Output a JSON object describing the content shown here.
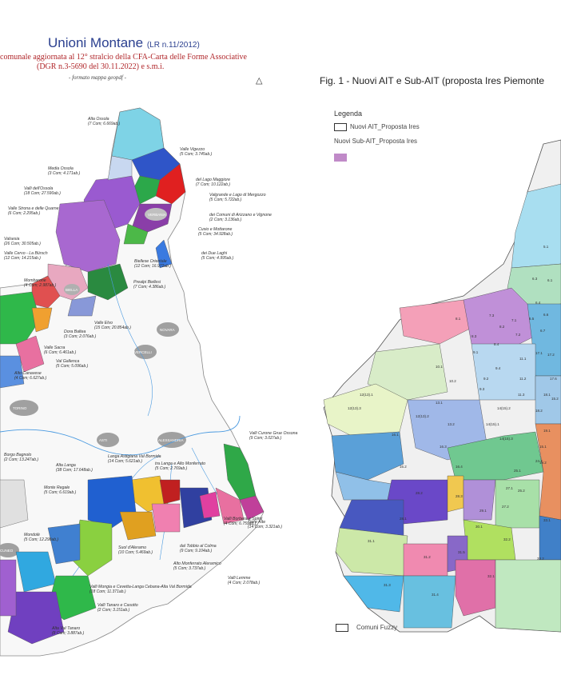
{
  "left_map": {
    "title": "Unioni Montane",
    "title_sub": "(LR n.11/2012)",
    "line1": "comunale aggiornata al 12° stralcio della CFA-Carta delle Forme Associative",
    "line2": "(DGR n.3-5690 del 30.11.2022) e s.m.i.",
    "note": "- formato mappa geopdf -",
    "compass": "△",
    "labels": [
      {
        "name": "Alta Ossola",
        "info": "(7 Com; 6.669ab.)"
      },
      {
        "name": "Valle Vigezzo",
        "info": "(5 Com; 3.745ab.)"
      },
      {
        "name": "Media Ossola",
        "info": "(3 Com; 4.171ab.)"
      },
      {
        "name": "del Lago Maggiore",
        "info": "(7 Com; 10.122ab.)"
      },
      {
        "name": "Valli dell'Ossola",
        "info": "(18 Com; 27.590ab.)"
      },
      {
        "name": "Valgrande e Lago di Mergozzo",
        "info": "(5 Com; 5.722ab.)"
      },
      {
        "name": "Valle Strona e delle Quarne",
        "info": "(6 Com; 2.295ab.)"
      },
      {
        "name": "dei Comuni di Arizzano e Vignone",
        "info": "(2 Com; 3.136ab.)"
      },
      {
        "name": "Valsesia",
        "info": "(26 Com; 30.505ab.)"
      },
      {
        "name": "Cusio e Mottarone",
        "info": "(5 Com; 34.928ab.)"
      },
      {
        "name": "Valle Cervo - La Bürsch",
        "info": "(12 Com; 14.215ab.)"
      },
      {
        "name": "dei Due Laghi",
        "info": "(5 Com; 4.995ab.)"
      },
      {
        "name": "Mombarone",
        "info": "(4 Com; 2.987ab.)"
      },
      {
        "name": "Biellese Orientale",
        "info": "(12 Com; 16.972ab.)"
      },
      {
        "name": "Prealpi Biellesi",
        "info": "(7 Com; 4.386ab.)"
      },
      {
        "name": "Valle Elvo",
        "info": "(15 Com; 20.854ab.)"
      },
      {
        "name": "Dora Baltea",
        "info": "(3 Com; 2.076ab.)"
      },
      {
        "name": "Valle Sacra",
        "info": "(6 Com; 6.461ab.)"
      },
      {
        "name": "Val Gallenca",
        "info": "(5 Com; 5.096ab.)"
      },
      {
        "name": "Alto Canavese",
        "info": "(4 Com; 6.627ab.)"
      },
      {
        "name": "Valli Curone Grue Ossona",
        "info": "(9 Com; 3.027ab.)"
      },
      {
        "name": "Langa Astigiana Val Bormida",
        "info": "(14 Com; 5.621ab.)"
      },
      {
        "name": "tra Langa e Alto Monferrato",
        "info": "(5 Com; 2.769ab.)"
      },
      {
        "name": "Alta Langa",
        "info": "(38 Com; 17.648ab.)"
      },
      {
        "name": "Monte Regale",
        "info": "(5 Com; 6.619ab.)"
      },
      {
        "name": "Valli Borbera e Spinti",
        "info": "(4 Com; 6.759ab.)"
      },
      {
        "name": "Terre Alte",
        "info": "(14 Com; 3.321ab.)"
      },
      {
        "name": "Mondolè",
        "info": "(5 Com; 12.298ab.)"
      },
      {
        "name": "dal Tobbio al Colma",
        "info": "(9 Com; 9.104ab.)"
      },
      {
        "name": "Suol d'Aleramo",
        "info": "(10 Com; 5.469ab.)"
      },
      {
        "name": "Alto Monferrato Aleramico",
        "info": "(5 Com; 3.737ab.)"
      },
      {
        "name": "Valli Lemme",
        "info": "(4 Com; 2.078ab.)"
      },
      {
        "name": "Valli Mongia e Cevetta-Langa Cebana-Alta Val Bormida",
        "info": "(18 Com; 11.371ab.)"
      },
      {
        "name": "Valli Tanaro e Casotto",
        "info": "(2 Com; 3.151ab.)"
      },
      {
        "name": "Alta Val Tanaro",
        "info": "(8 Com; 3.887ab.)"
      },
      {
        "name": "Borgo Bagnolo",
        "info": "(2 Com; 13.247ab.)"
      }
    ],
    "towns": [
      "VERBANIA",
      "NOVARA",
      "VERCELLI",
      "BIELLA",
      "TORINO",
      "ASTI",
      "ALESSANDRIA",
      "CUNEO"
    ]
  },
  "right_map": {
    "fig_title": "Fig. 1 - Nuovi AIT e Sub-AIT (proposta Ires Piemonte",
    "legend_title": "Legenda",
    "legend_items": [
      {
        "label": "Nuovi AIT_Proposta Ires",
        "color": "#ffffff"
      },
      {
        "label": "Nuovi Sub-AIT_Proposta Ires",
        "color": "#c08ac8"
      }
    ],
    "fuzzy_label": "Comuni Fuzzy",
    "region_codes": [
      "5.1",
      "6.1",
      "8.1",
      "7.3",
      "8.2",
      "8.3",
      "8.4",
      "6.3",
      "6.4",
      "6.5",
      "6.6",
      "6.7",
      "7.1",
      "7.2",
      "9.1",
      "9.2",
      "9.3",
      "9.4",
      "10.1",
      "10.2",
      "11.1",
      "11.2",
      "11.3",
      "12(13).1",
      "12(13).2",
      "12(13).3",
      "13.1",
      "13.2",
      "14(15).1",
      "14(15).2",
      "14(15).3",
      "15.1",
      "15.2",
      "16.1",
      "16.2",
      "16.3",
      "16.4",
      "17.1",
      "17.2",
      "17.6",
      "18.1",
      "18.2",
      "19.1",
      "19.2",
      "24.7",
      "25.1",
      "25.2",
      "27.1",
      "27.2",
      "28.1",
      "28.2",
      "28.3",
      "29.1",
      "30.1",
      "31.1",
      "31.2",
      "31.3",
      "31.4",
      "31.5",
      "32.1",
      "32.2",
      "33.1",
      "33.2"
    ]
  }
}
